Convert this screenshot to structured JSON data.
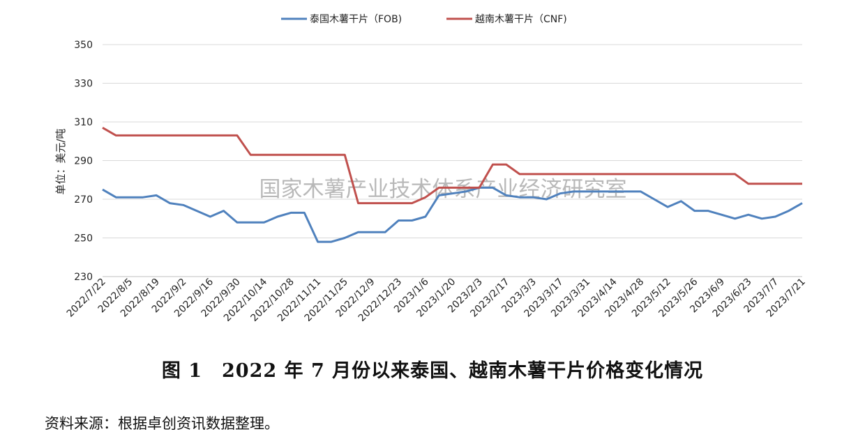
{
  "chart_data": {
    "type": "line",
    "ylabel": "单位：美元/吨",
    "ylim": [
      230,
      350
    ],
    "yticks": [
      230,
      250,
      270,
      290,
      310,
      330,
      350
    ],
    "grid": true,
    "legend_position": "top",
    "watermark": "国家木薯产业技术体系产业经济研究室",
    "x_tick_labels": [
      "2022/7/22",
      "2022/8/5",
      "2022/8/19",
      "2022/9/2",
      "2022/9/16",
      "2022/9/30",
      "2022/10/14",
      "2022/10/28",
      "2022/11/11",
      "2022/11/25",
      "2022/12/9",
      "2022/12/23",
      "2023/1/6",
      "2023/1/20",
      "2023/2/3",
      "2023/2/17",
      "2023/3/3",
      "2023/3/17",
      "2023/3/31",
      "2023/4/14",
      "2023/4/28",
      "2023/5/12",
      "2023/5/26",
      "2023/6/9",
      "2023/6/23",
      "2023/7/7",
      "2023/7/21"
    ],
    "series": [
      {
        "name": "泰国木薯干片（FOB)",
        "color": "#4F81BD",
        "values": [
          275,
          271,
          271,
          271,
          272,
          268,
          267,
          264,
          261,
          264,
          258,
          258,
          258,
          261,
          263,
          263,
          248,
          248,
          250,
          253,
          253,
          253,
          259,
          259,
          261,
          272,
          273,
          274,
          276,
          276,
          272,
          271,
          271,
          270,
          273,
          274,
          274,
          274,
          274,
          274,
          274,
          270,
          266,
          269,
          264,
          264,
          262,
          260,
          262,
          260,
          261,
          264,
          268
        ]
      },
      {
        "name": "越南木薯干片（CNF)",
        "color": "#C0504D",
        "values": [
          307,
          303,
          303,
          303,
          303,
          303,
          303,
          303,
          303,
          303,
          303,
          293,
          293,
          293,
          293,
          293,
          293,
          293,
          293,
          268,
          268,
          268,
          268,
          268,
          271,
          276,
          276,
          276,
          276,
          288,
          288,
          283,
          283,
          283,
          283,
          283,
          283,
          283,
          283,
          283,
          283,
          283,
          283,
          283,
          283,
          283,
          283,
          283,
          278,
          278,
          278,
          278,
          278
        ]
      }
    ]
  },
  "caption": "图 1　2022 年 7 月份以来泰国、越南木薯干片价格变化情况",
  "source_note": "资料来源：根据卓创资讯数据整理。"
}
